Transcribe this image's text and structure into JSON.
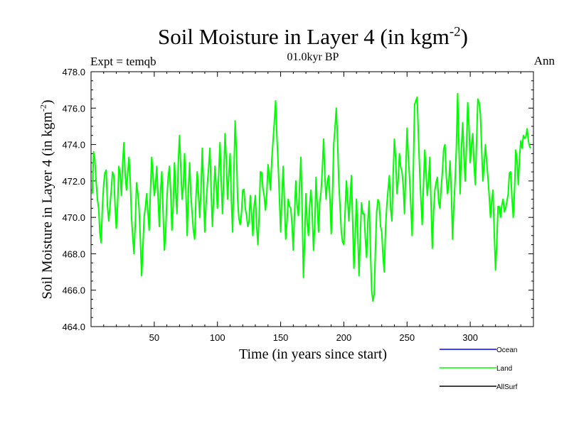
{
  "chart_data": {
    "type": "line",
    "title": "Soil Moisture in Layer 4 (in kgm",
    "title_sup": "-2",
    "title_close": ")",
    "experiment": "Expt = temqb",
    "subtitle": "01.0kyr BP",
    "season": "Ann",
    "xlabel": "Time (in years since start)",
    "ylabel": "Soil Moisture in Layer 4 (in kgm",
    "ylabel_sup": "-2",
    "ylabel_close": ")",
    "xlim": [
      0,
      350
    ],
    "ylim": [
      464,
      478
    ],
    "x_ticks": [
      50,
      100,
      150,
      200,
      250,
      300
    ],
    "y_ticks": [
      "464.0",
      "466.0",
      "468.0",
      "470.0",
      "472.0",
      "474.0",
      "476.0",
      "478.0"
    ],
    "legend": [
      {
        "name": "Ocean",
        "color": "#0000ff"
      },
      {
        "name": "Land",
        "color": "#00ff00"
      },
      {
        "name": "AllSurf",
        "color": "#000000"
      }
    ],
    "series": [
      {
        "name": "Land",
        "color": "#00ff00",
        "keypoints": [
          [
            1,
            471.3
          ],
          [
            2,
            473.6
          ],
          [
            4,
            472.0
          ],
          [
            6,
            470.5
          ],
          [
            8,
            468.6
          ],
          [
            10,
            471.8
          ],
          [
            12,
            472.6
          ],
          [
            14,
            469.8
          ],
          [
            16,
            471.5
          ],
          [
            18,
            472.3
          ],
          [
            20,
            469.4
          ],
          [
            22,
            472.8
          ],
          [
            24,
            471.2
          ],
          [
            26,
            474.1
          ],
          [
            28,
            471.5
          ],
          [
            30,
            473.3
          ],
          [
            32,
            470.0
          ],
          [
            34,
            468.0
          ],
          [
            36,
            471.9
          ],
          [
            38,
            470.5
          ],
          [
            40,
            466.8
          ],
          [
            42,
            470.0
          ],
          [
            44,
            471.3
          ],
          [
            46,
            469.3
          ],
          [
            48,
            473.3
          ],
          [
            50,
            471.2
          ],
          [
            52,
            472.8
          ],
          [
            54,
            469.5
          ],
          [
            56,
            472.5
          ],
          [
            58,
            468.2
          ],
          [
            60,
            471.0
          ],
          [
            62,
            472.8
          ],
          [
            64,
            469.3
          ],
          [
            66,
            473.0
          ],
          [
            68,
            470.2
          ],
          [
            70,
            474.5
          ],
          [
            72,
            471.0
          ],
          [
            74,
            473.5
          ],
          [
            76,
            469.0
          ],
          [
            78,
            473.0
          ],
          [
            80,
            470.2
          ],
          [
            82,
            468.8
          ],
          [
            84,
            472.5
          ],
          [
            86,
            470.0
          ],
          [
            88,
            473.8
          ],
          [
            90,
            469.2
          ],
          [
            92,
            471.8
          ],
          [
            94,
            473.8
          ],
          [
            96,
            469.5
          ],
          [
            98,
            472.8
          ],
          [
            100,
            470.5
          ],
          [
            102,
            474.1
          ],
          [
            104,
            470.2
          ],
          [
            106,
            474.6
          ],
          [
            108,
            471.0
          ],
          [
            110,
            473.5
          ],
          [
            112,
            469.2
          ],
          [
            114,
            475.3
          ],
          [
            116,
            471.0
          ],
          [
            118,
            469.6
          ],
          [
            120,
            471.5
          ],
          [
            122,
            470.5
          ],
          [
            124,
            469.5
          ],
          [
            126,
            471.2
          ],
          [
            128,
            469.0
          ],
          [
            130,
            471.2
          ],
          [
            132,
            468.5
          ],
          [
            134,
            472.5
          ],
          [
            136,
            471.6
          ],
          [
            138,
            470.4
          ],
          [
            140,
            472.9
          ],
          [
            142,
            471.5
          ],
          [
            144,
            474.2
          ],
          [
            146,
            476.4
          ],
          [
            148,
            473.0
          ],
          [
            150,
            469.2
          ],
          [
            152,
            472.8
          ],
          [
            154,
            468.8
          ],
          [
            156,
            471.0
          ],
          [
            158,
            470.5
          ],
          [
            160,
            468.2
          ],
          [
            162,
            472.0
          ],
          [
            164,
            470.1
          ],
          [
            166,
            473.3
          ],
          [
            168,
            466.7
          ],
          [
            170,
            471.3
          ],
          [
            172,
            469.0
          ],
          [
            174,
            471.5
          ],
          [
            176,
            468.2
          ],
          [
            178,
            472.2
          ],
          [
            180,
            469.2
          ],
          [
            182,
            471.4
          ],
          [
            184,
            474.3
          ],
          [
            186,
            471.0
          ],
          [
            188,
            472.3
          ],
          [
            190,
            469.1
          ],
          [
            192,
            474.0
          ],
          [
            194,
            476.0
          ],
          [
            196,
            472.0
          ],
          [
            198,
            469.2
          ],
          [
            200,
            468.5
          ],
          [
            202,
            472.0
          ],
          [
            204,
            469.8
          ],
          [
            206,
            472.3
          ],
          [
            208,
            467.2
          ],
          [
            210,
            471.0
          ],
          [
            212,
            466.8
          ],
          [
            214,
            470.8
          ],
          [
            216,
            470.2
          ],
          [
            218,
            467.8
          ],
          [
            220,
            470.9
          ],
          [
            222,
            466.0
          ],
          [
            224,
            465.8
          ],
          [
            226,
            470.3
          ],
          [
            228,
            470.8
          ],
          [
            230,
            469.2
          ],
          [
            232,
            467.0
          ],
          [
            234,
            470.7
          ],
          [
            236,
            472.3
          ],
          [
            238,
            469.8
          ],
          [
            240,
            474.3
          ],
          [
            242,
            471.3
          ],
          [
            244,
            473.5
          ],
          [
            246,
            472.5
          ],
          [
            248,
            470.2
          ],
          [
            250,
            474.9
          ],
          [
            252,
            472.2
          ],
          [
            254,
            469.0
          ],
          [
            256,
            476.2
          ],
          [
            258,
            476.6
          ],
          [
            260,
            472.5
          ],
          [
            262,
            469.6
          ],
          [
            264,
            473.7
          ],
          [
            266,
            471.2
          ],
          [
            268,
            473.3
          ],
          [
            270,
            468.3
          ],
          [
            272,
            471.5
          ],
          [
            274,
            472.2
          ],
          [
            276,
            470.5
          ],
          [
            278,
            472.5
          ],
          [
            280,
            474.0
          ],
          [
            282,
            471.3
          ],
          [
            284,
            473.1
          ],
          [
            286,
            468.8
          ],
          [
            288,
            472.0
          ],
          [
            290,
            476.8
          ],
          [
            292,
            471.3
          ],
          [
            294,
            475.2
          ],
          [
            296,
            472.0
          ],
          [
            298,
            476.3
          ],
          [
            300,
            473.0
          ],
          [
            302,
            474.6
          ],
          [
            304,
            471.8
          ],
          [
            306,
            476.5
          ],
          [
            308,
            475.7
          ],
          [
            310,
            472.0
          ],
          [
            312,
            474.0
          ],
          [
            314,
            472.2
          ],
          [
            316,
            470.0
          ],
          [
            318,
            471.5
          ],
          [
            320,
            467.1
          ],
          [
            322,
            470.6
          ],
          [
            324,
            470.0
          ],
          [
            326,
            471.0
          ],
          [
            328,
            470.5
          ],
          [
            330,
            471.3
          ],
          [
            332,
            472.5
          ],
          [
            334,
            470.0
          ],
          [
            336,
            473.7
          ],
          [
            338,
            471.8
          ],
          [
            340,
            474.2
          ],
          [
            342,
            474.5
          ],
          [
            344,
            474.4
          ],
          [
            346,
            474.2
          ],
          [
            348,
            473.8
          ]
        ]
      }
    ]
  }
}
